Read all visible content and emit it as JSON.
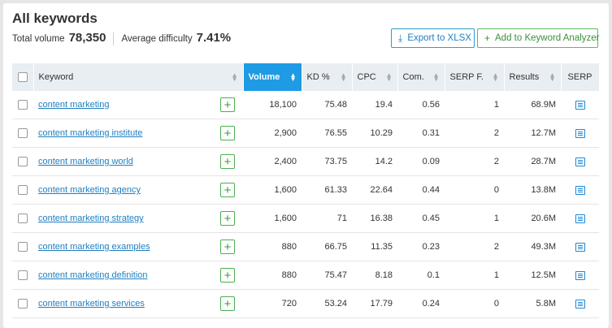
{
  "header": {
    "title": "All keywords",
    "total_volume_label": "Total volume",
    "total_volume_value": "78,350",
    "avg_difficulty_label": "Average difficulty",
    "avg_difficulty_value": "7.41%",
    "export_label": "Export to XLSX",
    "add_label": "Add to Keyword Analyzer"
  },
  "table": {
    "columns": [
      "Keyword",
      "Volume",
      "KD %",
      "CPC",
      "Com.",
      "SERP F.",
      "Results",
      "SERP"
    ],
    "rows": [
      {
        "keyword": "content marketing",
        "volume": "18,100",
        "kd": "75.48",
        "cpc": "19.4",
        "com": "0.56",
        "serpf": "1",
        "results": "68.9M"
      },
      {
        "keyword": "content marketing institute",
        "volume": "2,900",
        "kd": "76.55",
        "cpc": "10.29",
        "com": "0.31",
        "serpf": "2",
        "results": "12.7M"
      },
      {
        "keyword": "content marketing world",
        "volume": "2,400",
        "kd": "73.75",
        "cpc": "14.2",
        "com": "0.09",
        "serpf": "2",
        "results": "28.7M"
      },
      {
        "keyword": "content marketing agency",
        "volume": "1,600",
        "kd": "61.33",
        "cpc": "22.64",
        "com": "0.44",
        "serpf": "0",
        "results": "13.8M"
      },
      {
        "keyword": "content marketing strategy",
        "volume": "1,600",
        "kd": "71",
        "cpc": "16.38",
        "com": "0.45",
        "serpf": "1",
        "results": "20.6M"
      },
      {
        "keyword": "content marketing examples",
        "volume": "880",
        "kd": "66.75",
        "cpc": "11.35",
        "com": "0.23",
        "serpf": "2",
        "results": "49.3M"
      },
      {
        "keyword": "content marketing definition",
        "volume": "880",
        "kd": "75.47",
        "cpc": "8.18",
        "com": "0.1",
        "serpf": "1",
        "results": "12.5M"
      },
      {
        "keyword": "content marketing services",
        "volume": "720",
        "kd": "53.24",
        "cpc": "17.79",
        "com": "0.24",
        "serpf": "0",
        "results": "5.8M"
      }
    ]
  }
}
